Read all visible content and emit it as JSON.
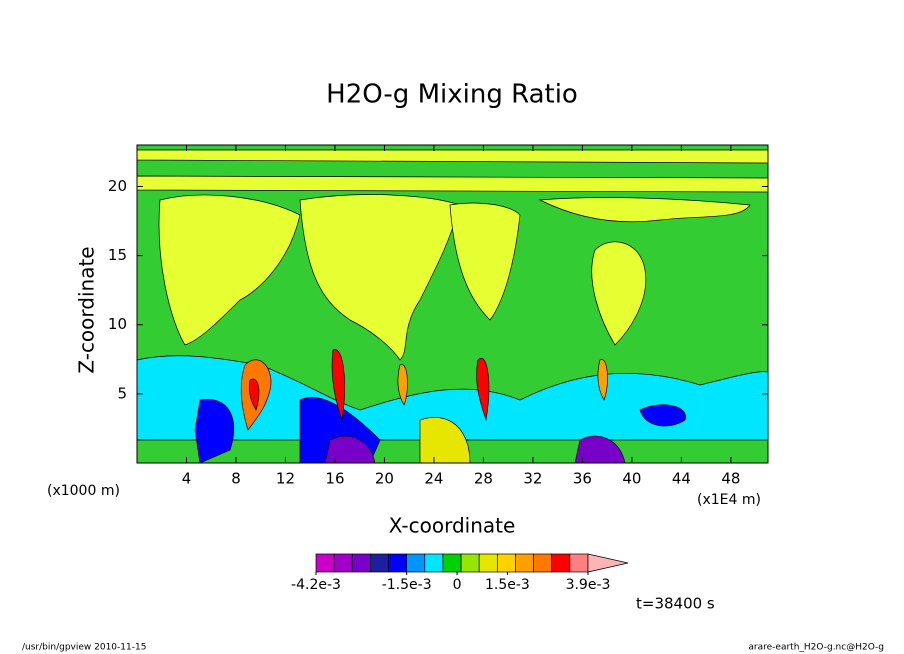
{
  "chart_data": {
    "type": "contour",
    "title": "H2O-g Mixing Ratio",
    "x_label": "X-coordinate",
    "y_label": "Z-coordinate",
    "x_unit_labels": [
      "(x1000 m)",
      "(x1E4 m)"
    ],
    "xlim": [
      0,
      51
    ],
    "xticks": [
      4,
      8,
      12,
      16,
      20,
      24,
      28,
      32,
      36,
      40,
      44,
      48
    ],
    "ylim": [
      0,
      23
    ],
    "yticks": [
      5,
      10,
      15,
      20
    ],
    "colorbar": {
      "colors": [
        "#c800c8",
        "#a000c8",
        "#7800c8",
        "#1e1ea0",
        "#0000ff",
        "#0096ff",
        "#00e6ff",
        "#00d200",
        "#96e600",
        "#e6e600",
        "#ffd200",
        "#ffa000",
        "#ff7800",
        "#ff0000",
        "#ff8080",
        "#ffb4b4"
      ],
      "lim": [
        -0.0042,
        0.0039
      ],
      "ticks": [
        {
          "value": -0.0042,
          "label": "-4.2e-3"
        },
        {
          "value": -0.0015,
          "label": "-1.5e-3"
        },
        0,
        {
          "value": 0.0015,
          "label": "1.5e-3"
        },
        {
          "value": 0.0039,
          "label": "3.9e-3"
        }
      ]
    },
    "time_label": "t=38400 s",
    "footer_left": "/usr/bin/gpview  2010-11-15",
    "footer_right": "arare-earth_H2O-g.nc@H2O-g"
  }
}
